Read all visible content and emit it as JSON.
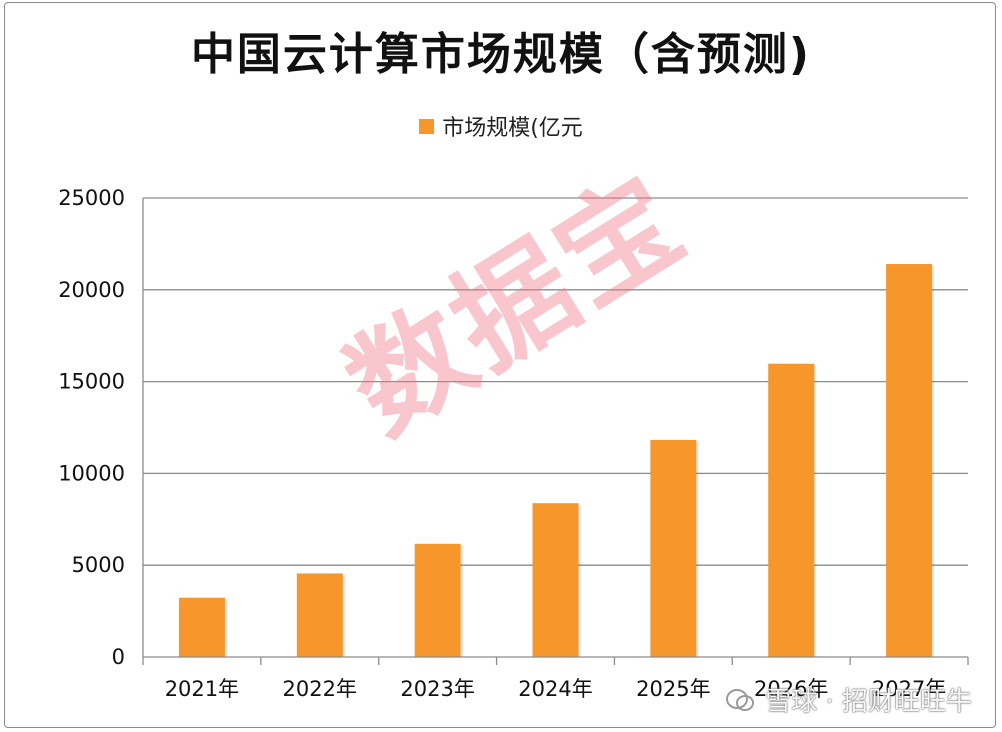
{
  "chart_data": {
    "type": "bar",
    "title": "中国云计算市场规模（含预测)",
    "legend_position": "top-center",
    "categories": [
      "2021年",
      "2022年",
      "2023年",
      "2024年",
      "2025年",
      "2026年",
      "2027年"
    ],
    "series": [
      {
        "name": "市场规模(亿元",
        "color": "#f7962b",
        "values": [
          3229,
          4550,
          6165,
          8378,
          11823,
          15973,
          21404
        ]
      }
    ],
    "ylim": [
      0,
      25000
    ],
    "yticks": [
      "0",
      "5000",
      "10000",
      "15000",
      "20000",
      "25000"
    ],
    "grid": true,
    "xlabel": "",
    "ylabel": ""
  },
  "watermark": {
    "text": "数据宝"
  },
  "credit": {
    "text": "雪球 · 招财旺旺牛",
    "icon": "snowball-icon"
  }
}
